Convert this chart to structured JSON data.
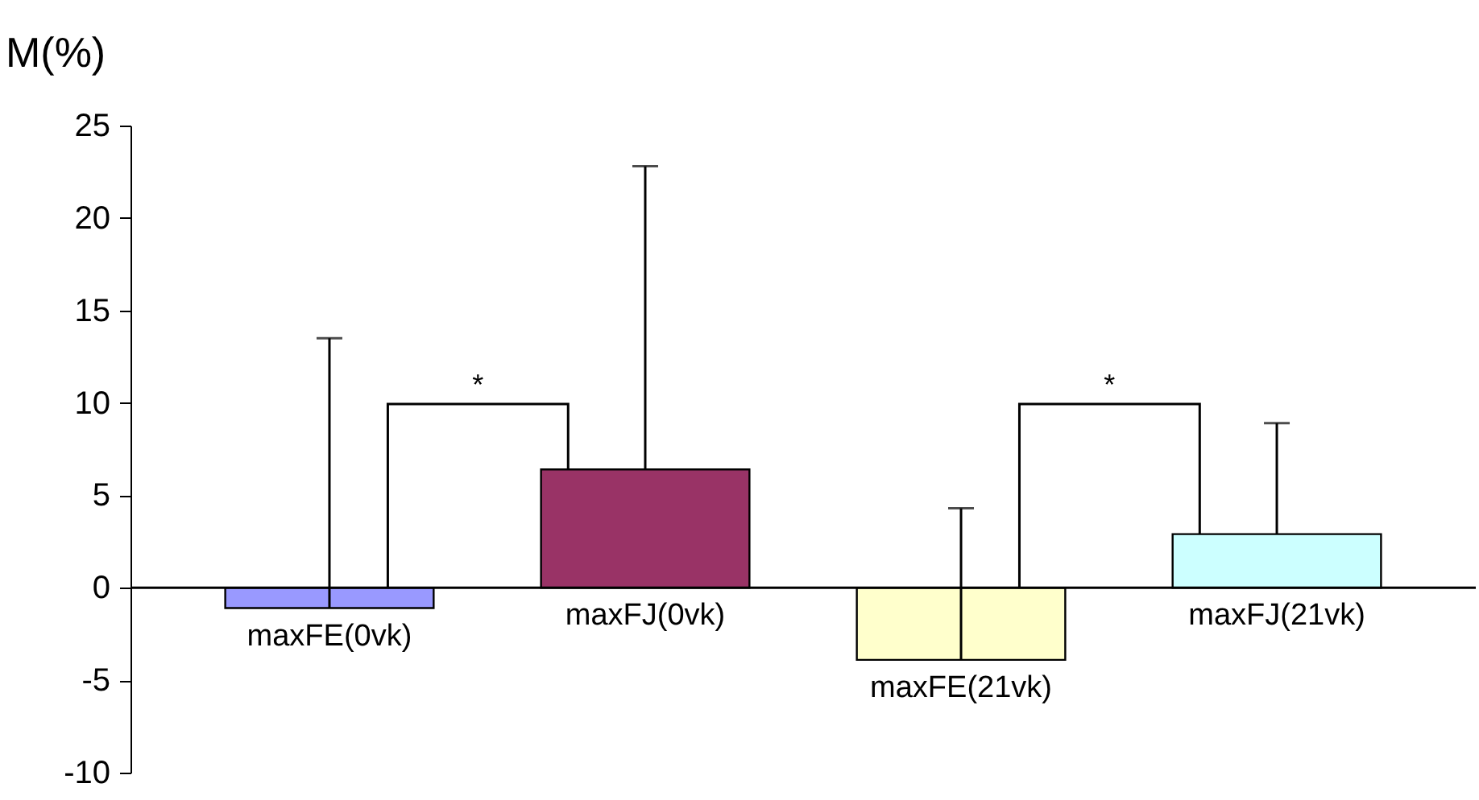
{
  "chart_data": {
    "type": "bar",
    "ylabel": "M(%)",
    "categories": [
      "maxFE(0vk)",
      "maxFJ(0vk)",
      "maxFE(21vk)",
      "maxFJ(21vk)"
    ],
    "values": [
      -1.1,
      6.4,
      -3.9,
      2.9
    ],
    "colors": [
      "#9999ff",
      "#993366",
      "#ffffcc",
      "#ccffff"
    ],
    "errors": [
      [
        -1.1,
        13.5
      ],
      [
        6.4,
        22.8
      ],
      [
        -3.9,
        4.3
      ],
      [
        2.9,
        8.9
      ]
    ],
    "ylim": [
      -10,
      25
    ],
    "yticks": [
      -10,
      -5,
      0,
      5,
      10,
      15,
      20,
      25
    ],
    "annotations": [
      "*",
      "*"
    ]
  }
}
